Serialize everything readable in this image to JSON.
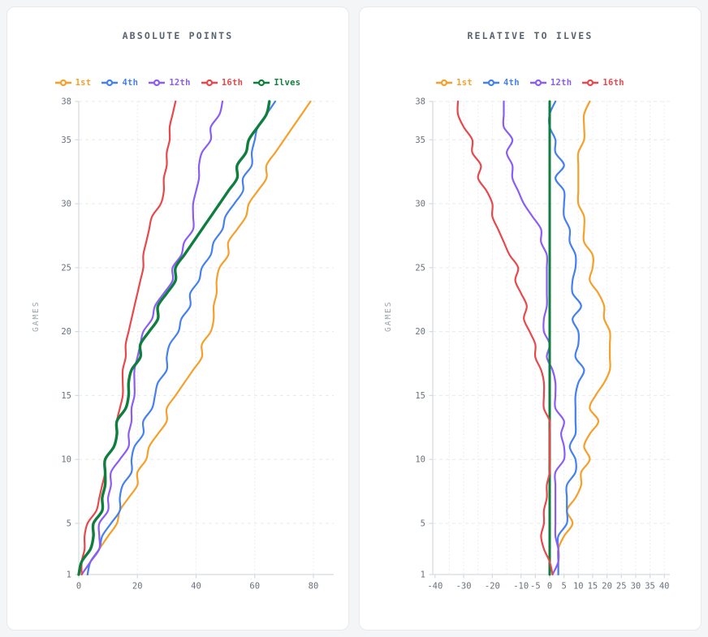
{
  "ui": {
    "page_background": "#f4f5f7",
    "card_background": "#ffffff",
    "card_border": "#e7e9ee",
    "title_color": "#59636f",
    "tick_label_color": "#68717c",
    "axis_line_color": "#d6dae0",
    "grid_line_color": "#e6e9ee",
    "games_label_color": "#9aa3ad"
  },
  "chart_data": [
    {
      "type": "line",
      "title": "ABSOLUTE POINTS",
      "ylabel": "GAMES",
      "xlabel": "",
      "xlim": [
        0,
        84
      ],
      "ylim": [
        1,
        38
      ],
      "x_ticks": [
        0,
        20,
        40,
        60,
        80
      ],
      "y_ticks": [
        1,
        5,
        10,
        15,
        20,
        25,
        30,
        35,
        38
      ],
      "grid": true,
      "legend_position": "top",
      "x_meaning": "cumulative points",
      "y_meaning": "games played (1 bottom to 38 top)",
      "series": [
        {
          "name": "1st",
          "color": "#f5a02b",
          "width": 2.2,
          "values": [
            3,
            4,
            7,
            10,
            13,
            14,
            17,
            20,
            20,
            23,
            24,
            27,
            30,
            30,
            33,
            36,
            39,
            42,
            42,
            45,
            46,
            46,
            47,
            47,
            48,
            51,
            51,
            54,
            57,
            58,
            61,
            64,
            64,
            67,
            70,
            73,
            76,
            79
          ]
        },
        {
          "name": "4th",
          "color": "#4480f0",
          "width": 2.2,
          "values": [
            3,
            4,
            7,
            8,
            11,
            14,
            14,
            15,
            18,
            18,
            19,
            22,
            22,
            25,
            26,
            27,
            30,
            30,
            31,
            34,
            35,
            38,
            38,
            41,
            42,
            45,
            46,
            49,
            50,
            53,
            56,
            56,
            59,
            59,
            60,
            61,
            64,
            67
          ]
        },
        {
          "name": "12th",
          "color": "#8b5cf6",
          "width": 2.2,
          "values": [
            1,
            4,
            7,
            7,
            7,
            10,
            10,
            11,
            11,
            14,
            17,
            17,
            18,
            18,
            19,
            19,
            19,
            20,
            21,
            22,
            25,
            26,
            29,
            32,
            32,
            35,
            36,
            39,
            39,
            39,
            40,
            41,
            41,
            42,
            45,
            45,
            48,
            49
          ]
        },
        {
          "name": "16th",
          "color": "#e8484c",
          "width": 2.2,
          "values": [
            1,
            1,
            2,
            2,
            3,
            6,
            7,
            8,
            9,
            9,
            12,
            13,
            13,
            14,
            15,
            15,
            15,
            16,
            16,
            17,
            18,
            19,
            20,
            21,
            22,
            22,
            23,
            24,
            25,
            28,
            29,
            29,
            30,
            30,
            31,
            31,
            32,
            33
          ]
        },
        {
          "name": "Ilves",
          "color": "#0f7e3e",
          "width": 3.4,
          "values": [
            0,
            1,
            4,
            5,
            5,
            8,
            8,
            9,
            9,
            9,
            12,
            13,
            13,
            16,
            17,
            17,
            18,
            21,
            21,
            24,
            27,
            27,
            30,
            33,
            33,
            36,
            39,
            42,
            45,
            48,
            51,
            54,
            54,
            57,
            58,
            61,
            64,
            65
          ]
        }
      ]
    },
    {
      "type": "line",
      "title": "RELATIVE TO ILVES",
      "ylabel": "GAMES",
      "xlabel": "",
      "xlim": [
        -40.5,
        41
      ],
      "ylim": [
        1,
        38
      ],
      "x_ticks": [
        -40,
        -30,
        -20,
        -10,
        -5,
        0,
        5,
        10,
        15,
        20,
        25,
        30,
        35,
        40
      ],
      "y_ticks": [
        1,
        5,
        10,
        15,
        20,
        25,
        30,
        35,
        38
      ],
      "grid": true,
      "grid_x_step": 5,
      "legend_position": "top",
      "x_meaning": "points difference vs Ilves",
      "y_meaning": "games played (1 bottom to 38 top)",
      "baseline": {
        "name": "Ilves",
        "color": "#0f7e3e",
        "value": 0,
        "width": 3.0
      },
      "series": [
        {
          "name": "1st",
          "color": "#f5a02b",
          "width": 2.2,
          "values": [
            3,
            3,
            3,
            5,
            8,
            6,
            9,
            11,
            11,
            14,
            12,
            14,
            17,
            14,
            16,
            19,
            21,
            21,
            21,
            21,
            19,
            19,
            17,
            14,
            15,
            15,
            12,
            12,
            12,
            10,
            10,
            10,
            10,
            10,
            12,
            12,
            12,
            14
          ]
        },
        {
          "name": "4th",
          "color": "#4480f0",
          "width": 2.2,
          "values": [
            3,
            3,
            3,
            3,
            6,
            6,
            6,
            6,
            9,
            9,
            7,
            9,
            9,
            9,
            9,
            10,
            12,
            9,
            10,
            10,
            8,
            11,
            8,
            8,
            9,
            9,
            7,
            7,
            5,
            5,
            5,
            2,
            5,
            2,
            2,
            0,
            0,
            2
          ]
        },
        {
          "name": "12th",
          "color": "#8b5cf6",
          "width": 2.2,
          "values": [
            1,
            3,
            3,
            2,
            2,
            2,
            2,
            2,
            2,
            5,
            5,
            4,
            5,
            2,
            2,
            2,
            1,
            -1,
            0,
            -2,
            -2,
            -1,
            -1,
            -1,
            -1,
            -1,
            -3,
            -3,
            -6,
            -9,
            -11,
            -13,
            -13,
            -15,
            -13,
            -16,
            -16,
            -16
          ]
        },
        {
          "name": "16th",
          "color": "#e8484c",
          "width": 2.2,
          "values": [
            1,
            0,
            -2,
            -3,
            -2,
            -2,
            -1,
            -1,
            0,
            0,
            0,
            0,
            0,
            -2,
            -2,
            -2,
            -3,
            -5,
            -5,
            -7,
            -9,
            -8,
            -10,
            -12,
            -11,
            -14,
            -16,
            -18,
            -20,
            -20,
            -22,
            -25,
            -24,
            -27,
            -27,
            -30,
            -32,
            -32
          ]
        }
      ]
    }
  ]
}
